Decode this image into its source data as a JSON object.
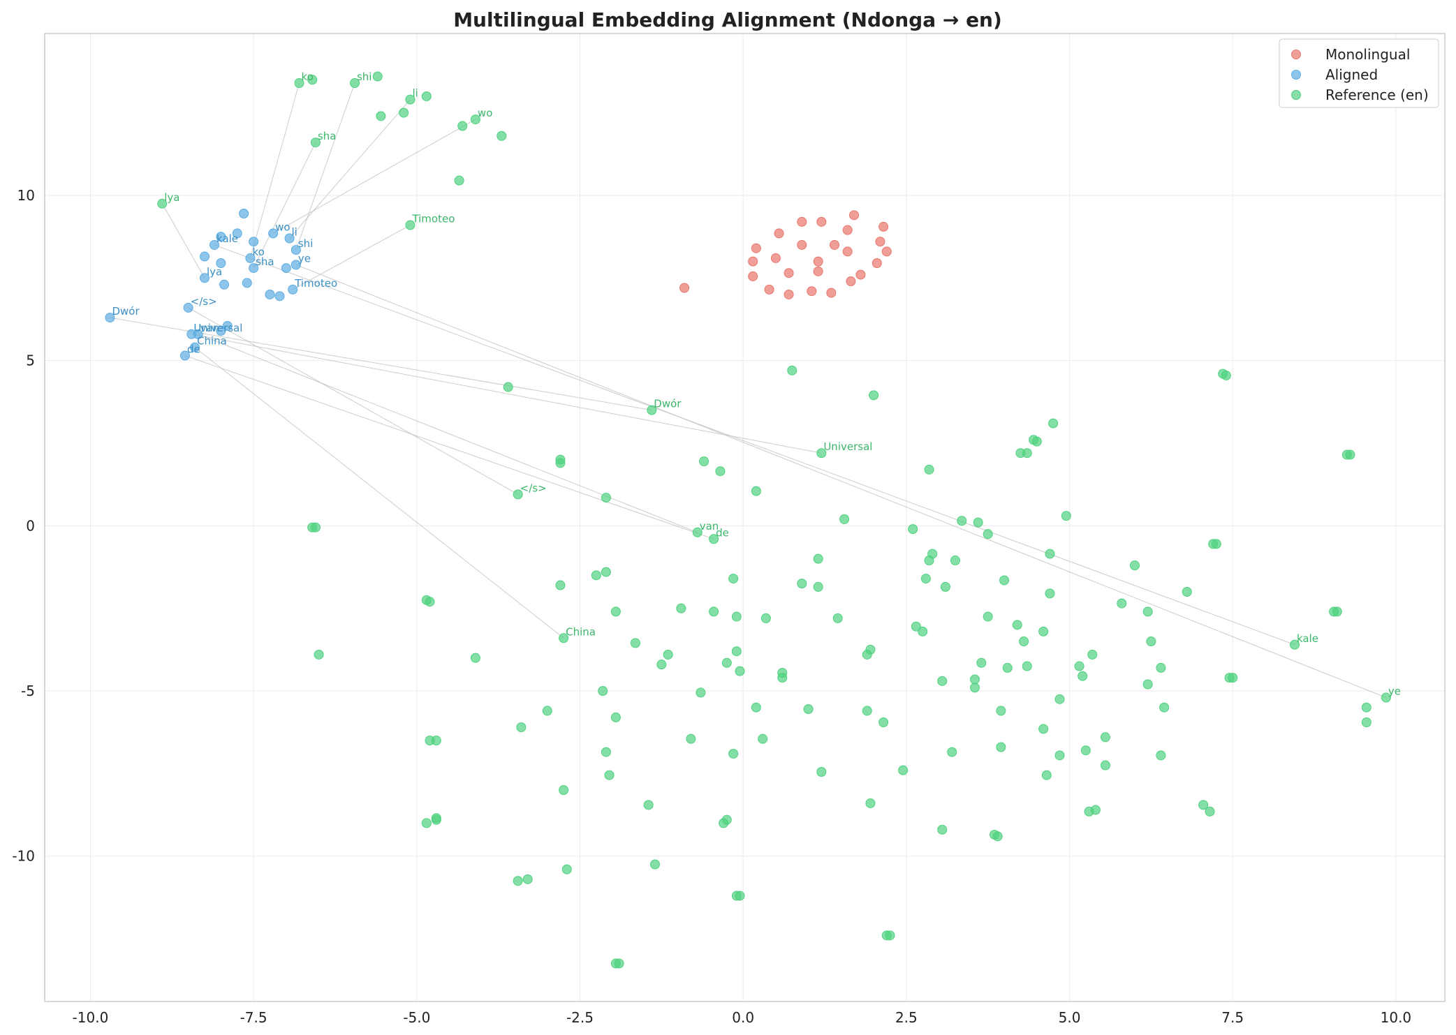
{
  "chart_data": {
    "type": "scatter",
    "title": "Multilingual Embedding Alignment (Ndonga → en)",
    "xlabel": "",
    "ylabel": "",
    "xlim": [
      -10.7,
      10.75
    ],
    "ylim": [
      -14.4,
      14.9
    ],
    "xticks": [
      -10.0,
      -7.5,
      -5.0,
      -2.5,
      0.0,
      2.5,
      5.0,
      7.5,
      10.0
    ],
    "xtick_labels": [
      "-10.0",
      "-7.5",
      "-5.0",
      "-2.5",
      "0.0",
      "2.5",
      "5.0",
      "7.5",
      "10.0"
    ],
    "yticks": [
      10,
      5,
      0,
      -5,
      -10
    ],
    "ytick_labels": [
      "10",
      "5",
      "0",
      "-5",
      "-10"
    ],
    "grid": true,
    "legend_position": "top-right",
    "colors": {
      "monolingual": "#e8766c",
      "aligned": "#5dade2",
      "reference": "#4fd17f",
      "aligned_label": "#3b8fc4",
      "reference_label": "#3cb66a",
      "link": "#bbbbbb"
    },
    "series": [
      {
        "name": "Monolingual",
        "color_key": "monolingual",
        "points": [
          [
            -0.9,
            7.2
          ],
          [
            0.2,
            8.4
          ],
          [
            0.15,
            8.0
          ],
          [
            0.15,
            7.55
          ],
          [
            0.55,
            8.85
          ],
          [
            0.9,
            9.2
          ],
          [
            1.2,
            9.2
          ],
          [
            1.7,
            9.4
          ],
          [
            2.15,
            9.05
          ],
          [
            1.6,
            8.95
          ],
          [
            0.5,
            8.1
          ],
          [
            0.9,
            8.5
          ],
          [
            1.15,
            8.0
          ],
          [
            1.4,
            8.5
          ],
          [
            1.6,
            8.3
          ],
          [
            2.1,
            8.6
          ],
          [
            2.2,
            8.3
          ],
          [
            0.7,
            7.65
          ],
          [
            1.15,
            7.7
          ],
          [
            0.4,
            7.15
          ],
          [
            0.7,
            7.0
          ],
          [
            1.05,
            7.1
          ],
          [
            1.35,
            7.05
          ],
          [
            1.65,
            7.4
          ],
          [
            1.8,
            7.6
          ],
          [
            2.05,
            7.95
          ]
        ]
      },
      {
        "name": "Aligned",
        "color_key": "aligned",
        "points": [
          [
            -7.65,
            9.45
          ],
          [
            -7.75,
            8.85
          ],
          [
            -8.0,
            8.75
          ],
          [
            -8.1,
            8.5
          ],
          [
            -8.25,
            8.15
          ],
          [
            -8.0,
            7.95
          ],
          [
            -8.25,
            7.5
          ],
          [
            -7.95,
            7.3
          ],
          [
            -7.5,
            8.6
          ],
          [
            -7.2,
            8.85
          ],
          [
            -6.95,
            8.7
          ],
          [
            -6.85,
            8.35
          ],
          [
            -7.55,
            8.1
          ],
          [
            -7.5,
            7.8
          ],
          [
            -7.6,
            7.35
          ],
          [
            -7.0,
            7.8
          ],
          [
            -6.85,
            7.9
          ],
          [
            -7.25,
            7.0
          ],
          [
            -7.1,
            6.95
          ],
          [
            -6.9,
            7.15
          ],
          [
            -9.7,
            6.3
          ],
          [
            -8.5,
            6.6
          ],
          [
            -7.9,
            6.05
          ],
          [
            -8.45,
            5.8
          ],
          [
            -8.35,
            5.8
          ],
          [
            -8.0,
            5.9
          ],
          [
            -8.4,
            5.4
          ],
          [
            -8.55,
            5.15
          ]
        ]
      },
      {
        "name": "Reference (en)",
        "color_key": "reference",
        "points": [
          [
            -6.8,
            13.4
          ],
          [
            -6.6,
            13.5
          ],
          [
            -5.95,
            13.4
          ],
          [
            -5.6,
            13.6
          ],
          [
            -5.1,
            12.9
          ],
          [
            -4.85,
            13.0
          ],
          [
            -5.55,
            12.4
          ],
          [
            -5.2,
            12.5
          ],
          [
            -4.3,
            12.1
          ],
          [
            -4.1,
            12.3
          ],
          [
            -3.7,
            11.8
          ],
          [
            -6.55,
            11.6
          ],
          [
            -4.35,
            10.45
          ],
          [
            -8.9,
            9.75
          ],
          [
            -5.1,
            9.1
          ],
          [
            -3.6,
            4.2
          ],
          [
            -1.4,
            3.5
          ],
          [
            0.75,
            4.7
          ],
          [
            2.0,
            3.95
          ],
          [
            1.2,
            2.2
          ],
          [
            -2.8,
            2.0
          ],
          [
            -2.8,
            1.9
          ],
          [
            -0.6,
            1.95
          ],
          [
            -0.35,
            1.65
          ],
          [
            0.2,
            1.05
          ],
          [
            -3.45,
            0.95
          ],
          [
            -2.1,
            0.85
          ],
          [
            -6.6,
            -0.05
          ],
          [
            -6.55,
            -0.05
          ],
          [
            -0.7,
            -0.2
          ],
          [
            -0.45,
            -0.4
          ],
          [
            1.55,
            0.2
          ],
          [
            2.6,
            -0.1
          ],
          [
            2.85,
            1.7
          ],
          [
            3.35,
            0.15
          ],
          [
            3.6,
            0.1
          ],
          [
            3.75,
            -0.25
          ],
          [
            4.25,
            2.2
          ],
          [
            4.35,
            2.2
          ],
          [
            4.45,
            2.6
          ],
          [
            4.5,
            2.55
          ],
          [
            4.75,
            3.1
          ],
          [
            4.95,
            0.3
          ],
          [
            7.35,
            4.6
          ],
          [
            7.4,
            4.55
          ],
          [
            9.3,
            2.15
          ],
          [
            9.25,
            2.15
          ],
          [
            7.2,
            -0.55
          ],
          [
            7.25,
            -0.55
          ],
          [
            4.7,
            -0.85
          ],
          [
            6.0,
            -1.2
          ],
          [
            2.9,
            -0.85
          ],
          [
            2.85,
            -1.05
          ],
          [
            3.25,
            -1.05
          ],
          [
            1.15,
            -1.0
          ],
          [
            -2.8,
            -1.8
          ],
          [
            -2.25,
            -1.5
          ],
          [
            -2.1,
            -1.4
          ],
          [
            -0.15,
            -1.6
          ],
          [
            0.9,
            -1.75
          ],
          [
            1.15,
            -1.85
          ],
          [
            2.8,
            -1.6
          ],
          [
            3.1,
            -1.85
          ],
          [
            4.0,
            -1.65
          ],
          [
            4.7,
            -2.05
          ],
          [
            6.8,
            -2.0
          ],
          [
            5.8,
            -2.35
          ],
          [
            6.2,
            -2.6
          ],
          [
            9.05,
            -2.6
          ],
          [
            9.1,
            -2.6
          ],
          [
            -4.85,
            -2.25
          ],
          [
            -4.8,
            -2.3
          ],
          [
            -1.95,
            -2.6
          ],
          [
            -0.95,
            -2.5
          ],
          [
            -0.45,
            -2.6
          ],
          [
            -0.1,
            -2.75
          ],
          [
            0.35,
            -2.8
          ],
          [
            1.45,
            -2.8
          ],
          [
            2.65,
            -3.05
          ],
          [
            2.75,
            -3.2
          ],
          [
            3.75,
            -2.75
          ],
          [
            4.2,
            -3.0
          ],
          [
            4.3,
            -3.5
          ],
          [
            4.6,
            -3.2
          ],
          [
            6.25,
            -3.5
          ],
          [
            8.45,
            -3.6
          ],
          [
            -2.75,
            -3.4
          ],
          [
            -1.65,
            -3.55
          ],
          [
            -1.15,
            -3.9
          ],
          [
            -1.25,
            -4.2
          ],
          [
            -0.1,
            -3.8
          ],
          [
            -0.25,
            -4.15
          ],
          [
            -0.05,
            -4.4
          ],
          [
            0.6,
            -4.45
          ],
          [
            0.6,
            -4.6
          ],
          [
            1.95,
            -3.75
          ],
          [
            1.9,
            -3.9
          ],
          [
            3.05,
            -4.7
          ],
          [
            3.55,
            -4.65
          ],
          [
            3.55,
            -4.9
          ],
          [
            3.65,
            -4.15
          ],
          [
            4.05,
            -4.3
          ],
          [
            4.35,
            -4.25
          ],
          [
            5.15,
            -4.25
          ],
          [
            5.2,
            -4.55
          ],
          [
            5.35,
            -3.9
          ],
          [
            6.4,
            -4.3
          ],
          [
            6.2,
            -4.8
          ],
          [
            7.45,
            -4.6
          ],
          [
            7.5,
            -4.6
          ],
          [
            9.85,
            -5.2
          ],
          [
            9.55,
            -5.5
          ],
          [
            9.55,
            -5.95
          ],
          [
            6.45,
            -5.5
          ],
          [
            4.85,
            -5.25
          ],
          [
            3.95,
            -5.6
          ],
          [
            4.6,
            -6.15
          ],
          [
            4.85,
            -6.95
          ],
          [
            5.25,
            -6.8
          ],
          [
            5.55,
            -6.4
          ],
          [
            5.55,
            -7.25
          ],
          [
            4.65,
            -7.55
          ],
          [
            3.95,
            -6.7
          ],
          [
            3.2,
            -6.85
          ],
          [
            2.45,
            -7.4
          ],
          [
            1.9,
            -5.6
          ],
          [
            2.15,
            -5.95
          ],
          [
            1.0,
            -5.55
          ],
          [
            1.2,
            -7.45
          ],
          [
            0.3,
            -6.45
          ],
          [
            0.2,
            -5.5
          ],
          [
            -0.15,
            -6.9
          ],
          [
            -0.65,
            -5.05
          ],
          [
            -0.8,
            -6.45
          ],
          [
            -1.95,
            -5.8
          ],
          [
            -2.15,
            -5.0
          ],
          [
            -2.1,
            -6.85
          ],
          [
            -2.05,
            -7.55
          ],
          [
            -3.0,
            -5.6
          ],
          [
            -3.4,
            -6.1
          ],
          [
            -2.75,
            -8.0
          ],
          [
            -4.8,
            -6.5
          ],
          [
            -4.7,
            -6.5
          ],
          [
            -4.1,
            -4.0
          ],
          [
            -6.5,
            -3.9
          ],
          [
            -4.85,
            -9.0
          ],
          [
            -4.7,
            -8.85
          ],
          [
            -4.7,
            -8.9
          ],
          [
            -1.45,
            -8.45
          ],
          [
            -0.25,
            -8.9
          ],
          [
            -0.3,
            -9.0
          ],
          [
            1.95,
            -8.4
          ],
          [
            3.05,
            -9.2
          ],
          [
            3.85,
            -9.35
          ],
          [
            3.9,
            -9.4
          ],
          [
            5.3,
            -8.65
          ],
          [
            5.4,
            -8.6
          ],
          [
            7.05,
            -8.45
          ],
          [
            7.15,
            -8.65
          ],
          [
            6.4,
            -6.95
          ],
          [
            -3.45,
            -10.75
          ],
          [
            -3.3,
            -10.7
          ],
          [
            -2.7,
            -10.4
          ],
          [
            -1.35,
            -10.25
          ],
          [
            -0.05,
            -11.2
          ],
          [
            -0.1,
            -11.2
          ],
          [
            2.25,
            -12.4
          ],
          [
            2.2,
            -12.4
          ],
          [
            -1.95,
            -13.25
          ],
          [
            -1.9,
            -13.25
          ]
        ]
      }
    ],
    "annotations": [
      {
        "text": "kale",
        "aligned": [
          -8.1,
          8.5
        ],
        "reference": [
          8.45,
          -3.6
        ]
      },
      {
        "text": "wo",
        "aligned": [
          -7.2,
          8.85
        ],
        "reference": [
          -4.1,
          12.3
        ]
      },
      {
        "text": "ko",
        "aligned": [
          -7.55,
          8.1
        ],
        "reference": [
          -6.8,
          13.4
        ]
      },
      {
        "text": "li",
        "aligned": [
          -6.95,
          8.7
        ],
        "reference": [
          -5.1,
          12.9
        ]
      },
      {
        "text": "shi",
        "aligned": [
          -6.85,
          8.35
        ],
        "reference": [
          -5.95,
          13.4
        ]
      },
      {
        "text": "sha",
        "aligned": [
          -7.5,
          7.8
        ],
        "reference": [
          -6.55,
          11.6
        ]
      },
      {
        "text": "ye",
        "aligned": [
          -6.85,
          7.9
        ],
        "reference": [
          9.85,
          -5.2
        ]
      },
      {
        "text": "lya",
        "aligned": [
          -8.25,
          7.5
        ],
        "reference": [
          -8.9,
          9.75
        ]
      },
      {
        "text": "Timoteo",
        "aligned": [
          -6.9,
          7.15
        ],
        "reference": [
          -5.1,
          9.1
        ]
      },
      {
        "text": "Dwór",
        "aligned": [
          -9.7,
          6.3
        ],
        "reference": [
          -1.4,
          3.5
        ]
      },
      {
        "text": "</s>",
        "aligned": [
          -8.5,
          6.6
        ],
        "reference": [
          -3.45,
          0.95
        ]
      },
      {
        "text": "Universal",
        "aligned": [
          -8.45,
          5.8
        ],
        "reference": [
          1.2,
          2.2
        ]
      },
      {
        "text": "van",
        "aligned": [
          -8.35,
          5.8
        ],
        "reference": [
          -0.7,
          -0.2
        ]
      },
      {
        "text": "China",
        "aligned": [
          -8.4,
          5.4
        ],
        "reference": [
          -2.75,
          -3.4
        ]
      },
      {
        "text": "de",
        "aligned": [
          -8.55,
          5.15
        ],
        "reference": [
          -0.45,
          -0.4
        ]
      }
    ]
  }
}
